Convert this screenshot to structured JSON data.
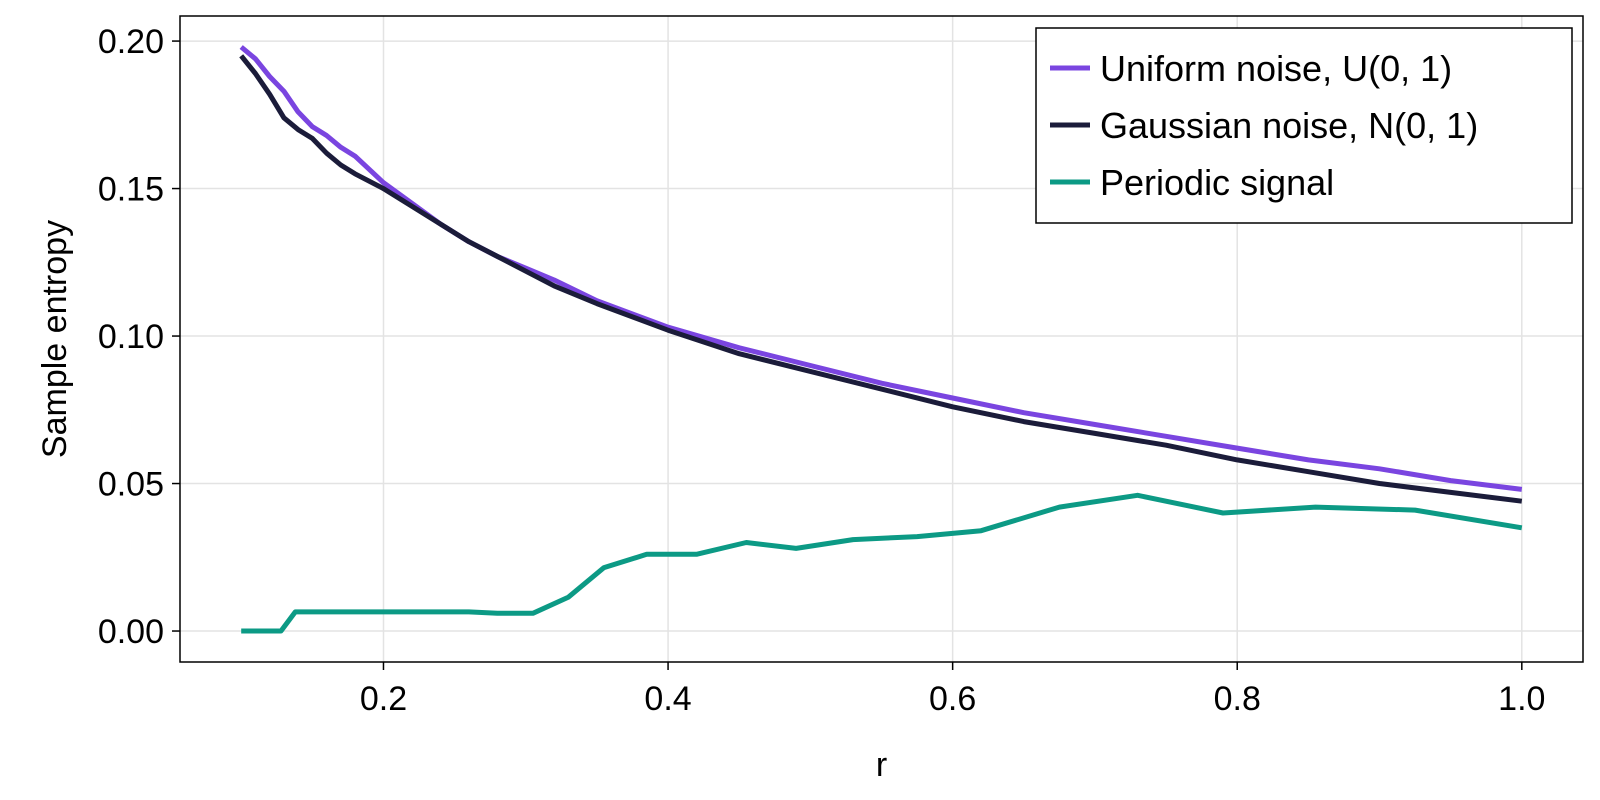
{
  "chart_data": {
    "type": "line",
    "xlabel": "r",
    "ylabel": "Sample entropy",
    "xlim": [
      0.057,
      1.043
    ],
    "ylim": [
      -0.0105,
      0.2085
    ],
    "xticks": [
      0.2,
      0.4,
      0.6,
      0.8,
      1.0
    ],
    "xtick_labels": [
      "0.2",
      "0.4",
      "0.6",
      "0.8",
      "1.0"
    ],
    "yticks": [
      0.0,
      0.05,
      0.1,
      0.15,
      0.2
    ],
    "ytick_labels": [
      "0.00",
      "0.05",
      "0.10",
      "0.15",
      "0.20"
    ],
    "grid": true,
    "legend_position": "top-right",
    "series": [
      {
        "name": "Uniform noise, U(0, 1)",
        "color": "#7a45e0",
        "x": [
          0.1,
          0.11,
          0.12,
          0.13,
          0.14,
          0.15,
          0.16,
          0.17,
          0.18,
          0.2,
          0.22,
          0.24,
          0.26,
          0.28,
          0.3,
          0.32,
          0.35,
          0.4,
          0.45,
          0.5,
          0.55,
          0.6,
          0.65,
          0.7,
          0.75,
          0.8,
          0.85,
          0.9,
          0.95,
          1.0
        ],
        "y": [
          0.198,
          0.194,
          0.188,
          0.183,
          0.176,
          0.171,
          0.168,
          0.164,
          0.161,
          0.152,
          0.145,
          0.138,
          0.132,
          0.127,
          0.123,
          0.119,
          0.112,
          0.103,
          0.096,
          0.09,
          0.084,
          0.079,
          0.074,
          0.07,
          0.066,
          0.062,
          0.058,
          0.055,
          0.051,
          0.048
        ]
      },
      {
        "name": "Gaussian noise, N(0, 1)",
        "color": "#1b1c3a",
        "x": [
          0.1,
          0.11,
          0.12,
          0.13,
          0.14,
          0.15,
          0.16,
          0.17,
          0.18,
          0.2,
          0.22,
          0.24,
          0.26,
          0.28,
          0.3,
          0.32,
          0.35,
          0.4,
          0.45,
          0.5,
          0.55,
          0.6,
          0.65,
          0.7,
          0.75,
          0.8,
          0.85,
          0.9,
          0.95,
          1.0
        ],
        "y": [
          0.195,
          0.189,
          0.182,
          0.174,
          0.17,
          0.167,
          0.162,
          0.158,
          0.155,
          0.15,
          0.144,
          0.138,
          0.132,
          0.127,
          0.122,
          0.117,
          0.111,
          0.102,
          0.094,
          0.088,
          0.082,
          0.076,
          0.071,
          0.067,
          0.063,
          0.058,
          0.054,
          0.05,
          0.047,
          0.044
        ]
      },
      {
        "name": "Periodic signal",
        "color": "#0c9a85",
        "x": [
          0.1,
          0.128,
          0.138,
          0.2,
          0.26,
          0.28,
          0.305,
          0.33,
          0.355,
          0.385,
          0.42,
          0.455,
          0.49,
          0.53,
          0.575,
          0.62,
          0.675,
          0.73,
          0.79,
          0.855,
          0.925,
          1.0
        ],
        "y": [
          0.0,
          0.0,
          0.0065,
          0.0065,
          0.0065,
          0.006,
          0.006,
          0.0115,
          0.0215,
          0.026,
          0.026,
          0.03,
          0.028,
          0.031,
          0.032,
          0.034,
          0.042,
          0.046,
          0.04,
          0.042,
          0.041,
          0.035
        ]
      }
    ]
  }
}
